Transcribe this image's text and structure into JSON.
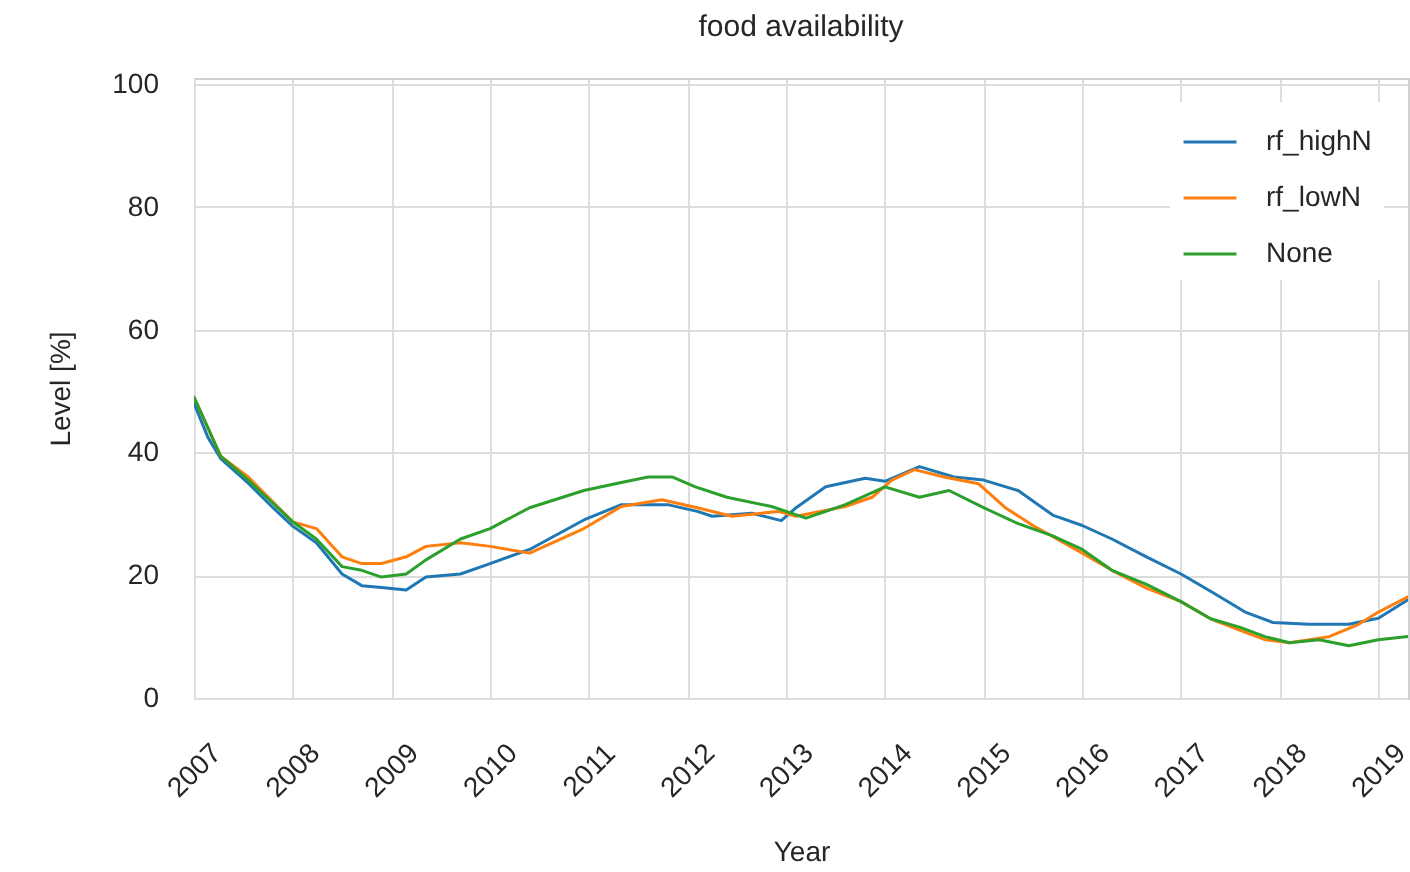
{
  "chart_data": {
    "type": "line",
    "title": "food availability",
    "xlabel": "Year",
    "ylabel": "Level [%]",
    "xlim": [
      2007,
      2019.3
    ],
    "xticks": [
      2007,
      2008,
      2009,
      2010,
      2011,
      2012,
      2013,
      2014,
      2015,
      2016,
      2017,
      2018,
      2019
    ],
    "ylim": [
      0,
      101
    ],
    "yticks": [
      0,
      20,
      40,
      60,
      80,
      100
    ],
    "grid": true,
    "legend": "top right",
    "series": [
      {
        "name": "rf_highN",
        "color": "#1f77b4",
        "x": [
          2007.0,
          2007.14,
          2007.27,
          2007.55,
          2007.8,
          2008.0,
          2008.24,
          2008.5,
          2008.7,
          2008.9,
          2009.15,
          2009.35,
          2009.7,
          2010.0,
          2010.4,
          2010.95,
          2011.33,
          2011.8,
          2012.1,
          2012.25,
          2012.65,
          2012.95,
          2013.1,
          2013.4,
          2013.8,
          2014.0,
          2014.35,
          2014.7,
          2015.0,
          2015.35,
          2015.7,
          2016.0,
          2016.3,
          2016.65,
          2017.0,
          2017.3,
          2017.65,
          2017.93,
          2018.3,
          2018.7,
          2019.0,
          2019.3
        ],
        "values": [
          48,
          42.5,
          39,
          35,
          31,
          28,
          25.3,
          20.2,
          18.3,
          18,
          17.6,
          19.7,
          20.2,
          21.9,
          24.2,
          29,
          31.5,
          31.5,
          30.4,
          29.6,
          30.1,
          28.9,
          31,
          34.4,
          35.8,
          35.3,
          37.7,
          36,
          35.5,
          33.8,
          29.8,
          28.1,
          25.9,
          23,
          20.2,
          17.4,
          14,
          12.3,
          12,
          12,
          13,
          16
        ]
      },
      {
        "name": "rf_lowN",
        "color": "#ff7f0e",
        "x": [
          2007.0,
          2007.27,
          2007.55,
          2008.0,
          2008.24,
          2008.5,
          2008.7,
          2008.9,
          2009.15,
          2009.35,
          2009.7,
          2010.0,
          2010.4,
          2010.95,
          2011.33,
          2011.74,
          2012.1,
          2012.45,
          2012.92,
          2013.1,
          2013.6,
          2013.87,
          2014.07,
          2014.3,
          2014.6,
          2014.95,
          2015.22,
          2015.5,
          2016.0,
          2016.3,
          2016.65,
          2017.0,
          2017.3,
          2017.6,
          2017.85,
          2018.1,
          2018.5,
          2018.8,
          2019.0,
          2019.3
        ],
        "values": [
          49,
          39.4,
          36,
          28.7,
          27.6,
          23,
          21.9,
          21.9,
          23,
          24.7,
          25.3,
          24.7,
          23.6,
          27.6,
          31.2,
          32.3,
          31,
          29.6,
          30.4,
          29.6,
          31.2,
          32.7,
          35.5,
          37.2,
          36,
          34.9,
          31,
          28.1,
          23.6,
          20.8,
          17.9,
          15.7,
          12.9,
          11,
          9.5,
          9,
          10,
          12,
          14,
          16.5
        ]
      },
      {
        "name": "None",
        "color": "#2ca02c",
        "x": [
          2007.0,
          2007.27,
          2007.55,
          2008.0,
          2008.24,
          2008.5,
          2008.7,
          2008.9,
          2009.15,
          2009.35,
          2009.7,
          2010.0,
          2010.4,
          2010.95,
          2011.27,
          2011.6,
          2011.85,
          2012.08,
          2012.4,
          2012.85,
          2013.0,
          2013.2,
          2013.6,
          2014.0,
          2014.35,
          2014.65,
          2015.0,
          2015.35,
          2015.7,
          2016.0,
          2016.3,
          2016.65,
          2017.0,
          2017.3,
          2017.6,
          2017.85,
          2018.1,
          2018.4,
          2018.7,
          2019.0,
          2019.3
        ],
        "values": [
          49,
          39.4,
          35.5,
          28.7,
          25.9,
          21.4,
          20.8,
          19.7,
          20.2,
          22.5,
          25.9,
          27.6,
          31,
          33.8,
          34.9,
          36,
          36,
          34.4,
          32.7,
          31.2,
          30.4,
          29.3,
          31.5,
          34.4,
          32.7,
          33.8,
          31,
          28.4,
          26.4,
          24.2,
          20.8,
          18.5,
          15.7,
          12.9,
          11.5,
          10,
          9,
          9.5,
          8.5,
          9.5,
          10
        ]
      }
    ]
  }
}
